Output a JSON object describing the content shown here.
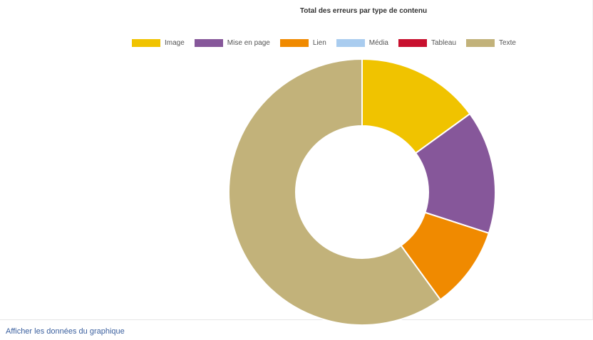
{
  "chart_data": {
    "type": "pie",
    "title": "Total des erreurs par type de contenu",
    "legend_position": "top",
    "donut": true,
    "categories": [
      "Image",
      "Mise en page",
      "Lien",
      "Média",
      "Tableau",
      "Texte"
    ],
    "values": [
      15,
      15,
      10,
      0,
      0,
      60
    ],
    "colors": [
      "#f0c300",
      "#86579a",
      "#f08a00",
      "#a9ccef",
      "#c8102e",
      "#c2b27a"
    ]
  },
  "footer": {
    "show_data_label": "Afficher les données du graphique"
  }
}
